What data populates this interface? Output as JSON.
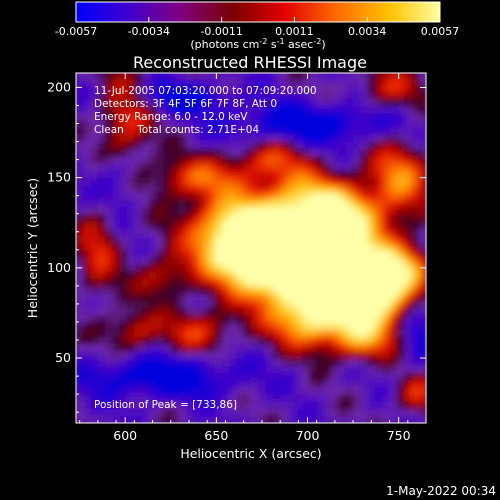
{
  "chart_data": {
    "type": "heatmap",
    "title": "Reconstructed RHESSI Image",
    "xlabel": "Heliocentric X (arcsec)",
    "ylabel": "Heliocentric Y (arcsec)",
    "xlim": [
      573,
      765
    ],
    "ylim": [
      14,
      208
    ],
    "x_ticks": [
      600,
      650,
      700,
      750
    ],
    "y_ticks": [
      50,
      100,
      150,
      200
    ],
    "colorbar": {
      "min": -0.0057,
      "max": 0.0057,
      "ticks": [
        "-0.0057",
        "-0.0034",
        "-0.0011",
        "0.0011",
        "0.0034",
        "0.0057"
      ],
      "label_prefix": "(photons cm",
      "label_exp1": "-2",
      "label_mid": " s",
      "label_exp2": "-1",
      "label_mid2": " asec",
      "label_exp3": "-2",
      "label_suffix": ")",
      "colormap": [
        "#0000ff",
        "#3f00cc",
        "#800080",
        "#7a0000",
        "#e00000",
        "#ff6a00",
        "#ffc000",
        "#ffffa0"
      ]
    },
    "annotations": {
      "time": "11-Jul-2005 07:03:20.000 to 07:09:20.000",
      "detectors": "Detectors: 3F 4F 5F 6F 7F 8F, Att 0",
      "energy": "Energy Range: 6.0 - 12.0 keV",
      "clean": "Clean    Total counts: 2.71E+04",
      "peak": "Position of Peak = [733,86]"
    },
    "peak_position": [
      733,
      86
    ]
  },
  "footer": {
    "date": "1-May-2022 00:34"
  }
}
